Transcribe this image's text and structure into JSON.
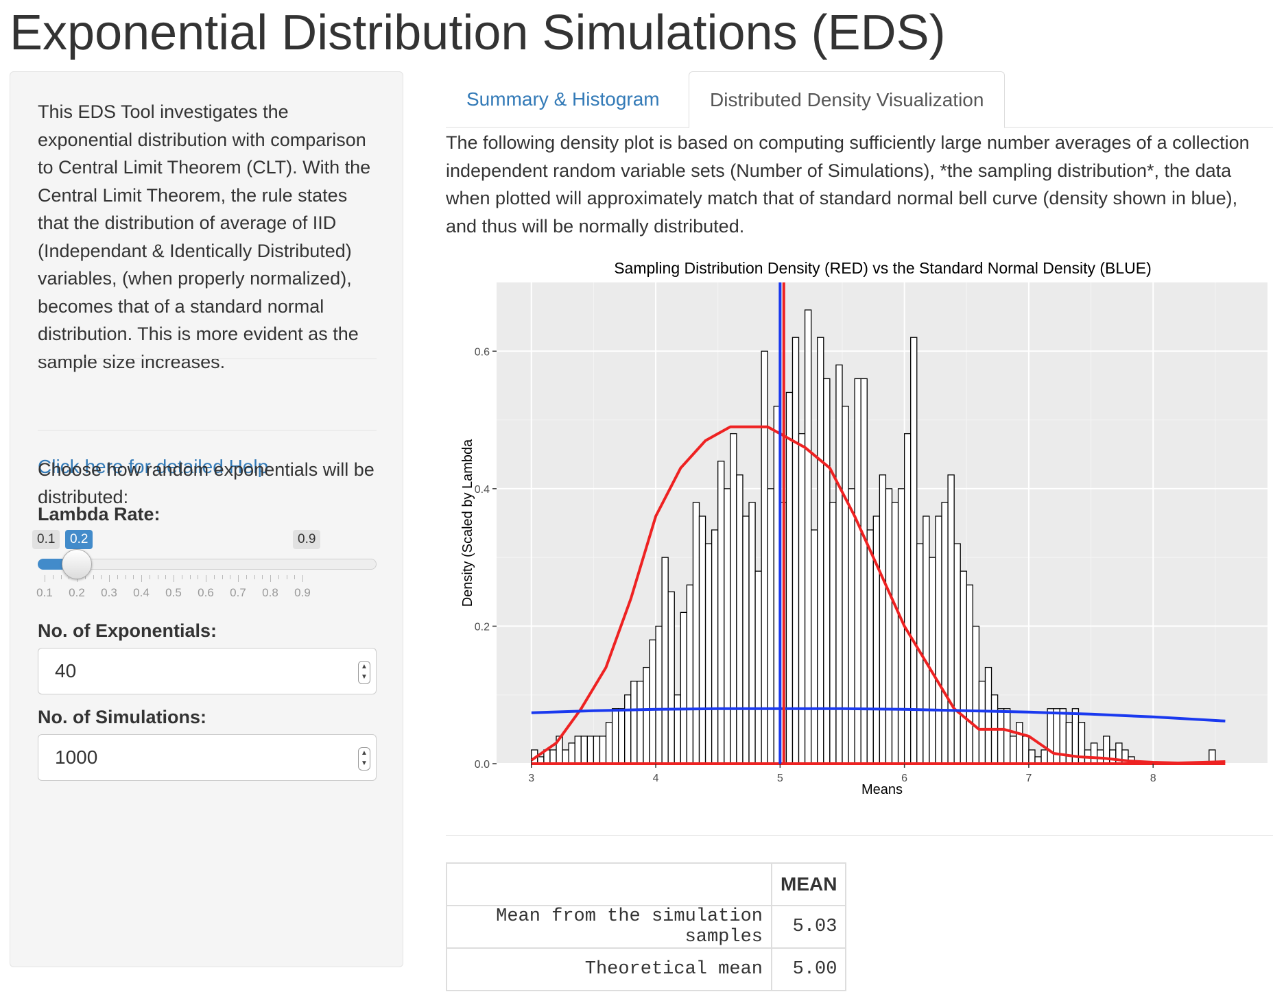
{
  "title": "Exponential Distribution Simulations (EDS)",
  "sidebar": {
    "intro": "This EDS Tool investigates the exponential distribution with comparison to Central Limit Theorem (CLT). With the Central Limit Theorem, the rule states that the distribution of average of IID (Independant & Identically Distributed) variables, (when properly normalized), becomes that of a standard normal distribution. This is more evident as the sample size increases.",
    "help_link": "Click here for detailed Help",
    "choose_text": "Choose how random exponentials will be distributed:",
    "lambda": {
      "label": "Lambda Rate:",
      "min": "0.1",
      "value": "0.2",
      "max": "0.9",
      "value_num": 0.2,
      "ticks": [
        "0.1",
        "0.2",
        "0.3",
        "0.4",
        "0.5",
        "0.6",
        "0.7",
        "0.8",
        "0.9"
      ]
    },
    "exponentials": {
      "label": "No. of Exponentials:",
      "value": "40"
    },
    "simulations": {
      "label": "No. of Simulations:",
      "value": "1000"
    }
  },
  "tabs": [
    {
      "label": "Summary & Histogram",
      "active": false
    },
    {
      "label": "Distributed Density Visualization",
      "active": true
    }
  ],
  "description": "The following density plot is based on computing sufficiently large number averages of a collection independent random variable sets (Number of Simulations), *the sampling distribution*, the data when plotted will approximately match that of standard normal bell curve (density shown in blue), and thus will be normally distributed.",
  "colors": {
    "link": "#337ab7",
    "slider": "#428bca",
    "density": "#ee2222",
    "normal": "#1a39ef",
    "panel": "#ebebeb"
  },
  "chart_data": {
    "type": "bar",
    "title": "Sampling Distribution Density (RED) vs the Standard Normal Density (BLUE)",
    "xlabel": "Means",
    "ylabel": "Density (Scaled by Lambda",
    "xlim": [
      2.72,
      8.92
    ],
    "ylim": [
      0,
      0.7
    ],
    "xticks": [
      "3",
      "4",
      "5",
      "6",
      "7",
      "8"
    ],
    "yticks": [
      "0.0",
      "0.2",
      "0.4",
      "0.6"
    ],
    "bin_width": 0.05,
    "bin_start": 3.0,
    "values": [
      0.02,
      0.01,
      0.02,
      0.02,
      0.04,
      0.02,
      0.03,
      0.04,
      0.04,
      0.04,
      0.04,
      0.04,
      0.06,
      0.08,
      0.08,
      0.1,
      0.12,
      0.12,
      0.14,
      0.18,
      0.2,
      0.3,
      0.25,
      0.1,
      0.22,
      0.26,
      0.38,
      0.36,
      0.32,
      0.34,
      0.44,
      0.4,
      0.48,
      0.42,
      0.36,
      0.38,
      0.28,
      0.6,
      0.4,
      0.52,
      0.38,
      0.54,
      0.62,
      0.48,
      0.66,
      0.34,
      0.62,
      0.56,
      0.38,
      0.58,
      0.52,
      0.4,
      0.56,
      0.56,
      0.34,
      0.36,
      0.42,
      0.4,
      0.38,
      0.4,
      0.48,
      0.62,
      0.32,
      0.36,
      0.3,
      0.36,
      0.38,
      0.42,
      0.32,
      0.28,
      0.26,
      0.2,
      0.12,
      0.14,
      0.1,
      0.08,
      0.08,
      0.04,
      0.06,
      0.04,
      0.02,
      0.01,
      0.02,
      0.08,
      0.08,
      0.08,
      0.06,
      0.08,
      0.06,
      0.02,
      0.03,
      0.02,
      0.04,
      0.02,
      0.03,
      0.02,
      0.01,
      0.0,
      0.0,
      0.0,
      0.0,
      0.0,
      0.0,
      0.0,
      0.0,
      0.0,
      0.0,
      0.0,
      0.0,
      0.02,
      0.0,
      0.0,
      0.0,
      0.0,
      0.0,
      0.0,
      0.0,
      0.0,
      0.0,
      0.0,
      0.0,
      0.02
    ],
    "series": [
      {
        "name": "Sampling Distribution Density (RED)",
        "color": "#ee2222",
        "x": [
          3.0,
          3.2,
          3.4,
          3.6,
          3.8,
          4.0,
          4.2,
          4.4,
          4.6,
          4.8,
          4.9,
          5.0,
          5.1,
          5.2,
          5.4,
          5.6,
          5.8,
          6.0,
          6.2,
          6.4,
          6.6,
          6.8,
          7.0,
          7.2,
          7.4,
          7.6,
          7.8,
          8.0,
          8.2,
          8.4,
          8.58
        ],
        "y": [
          0.005,
          0.03,
          0.08,
          0.14,
          0.24,
          0.36,
          0.43,
          0.47,
          0.49,
          0.49,
          0.49,
          0.48,
          0.47,
          0.46,
          0.43,
          0.36,
          0.28,
          0.2,
          0.14,
          0.08,
          0.05,
          0.05,
          0.04,
          0.015,
          0.01,
          0.008,
          0.004,
          0.002,
          0.001,
          0.002,
          0.003
        ]
      },
      {
        "name": "Standard Normal Density (BLUE)",
        "color": "#1a39ef",
        "x": [
          3.0,
          3.5,
          4.0,
          4.5,
          5.0,
          5.5,
          6.0,
          6.5,
          7.0,
          7.5,
          8.0,
          8.58
        ],
        "y": [
          0.074,
          0.077,
          0.079,
          0.08,
          0.08,
          0.08,
          0.079,
          0.077,
          0.075,
          0.072,
          0.068,
          0.062
        ]
      }
    ],
    "vlines": [
      {
        "name": "sample-mean",
        "x": 5.03,
        "color": "#ee2222"
      },
      {
        "name": "theoretical-mean",
        "x": 5.0,
        "color": "#1a39ef"
      }
    ]
  },
  "table": {
    "header": [
      "",
      "MEAN"
    ],
    "rows": [
      [
        "Mean from the simulation samples",
        "5.03"
      ],
      [
        "Theoretical mean",
        "5.00"
      ]
    ]
  }
}
